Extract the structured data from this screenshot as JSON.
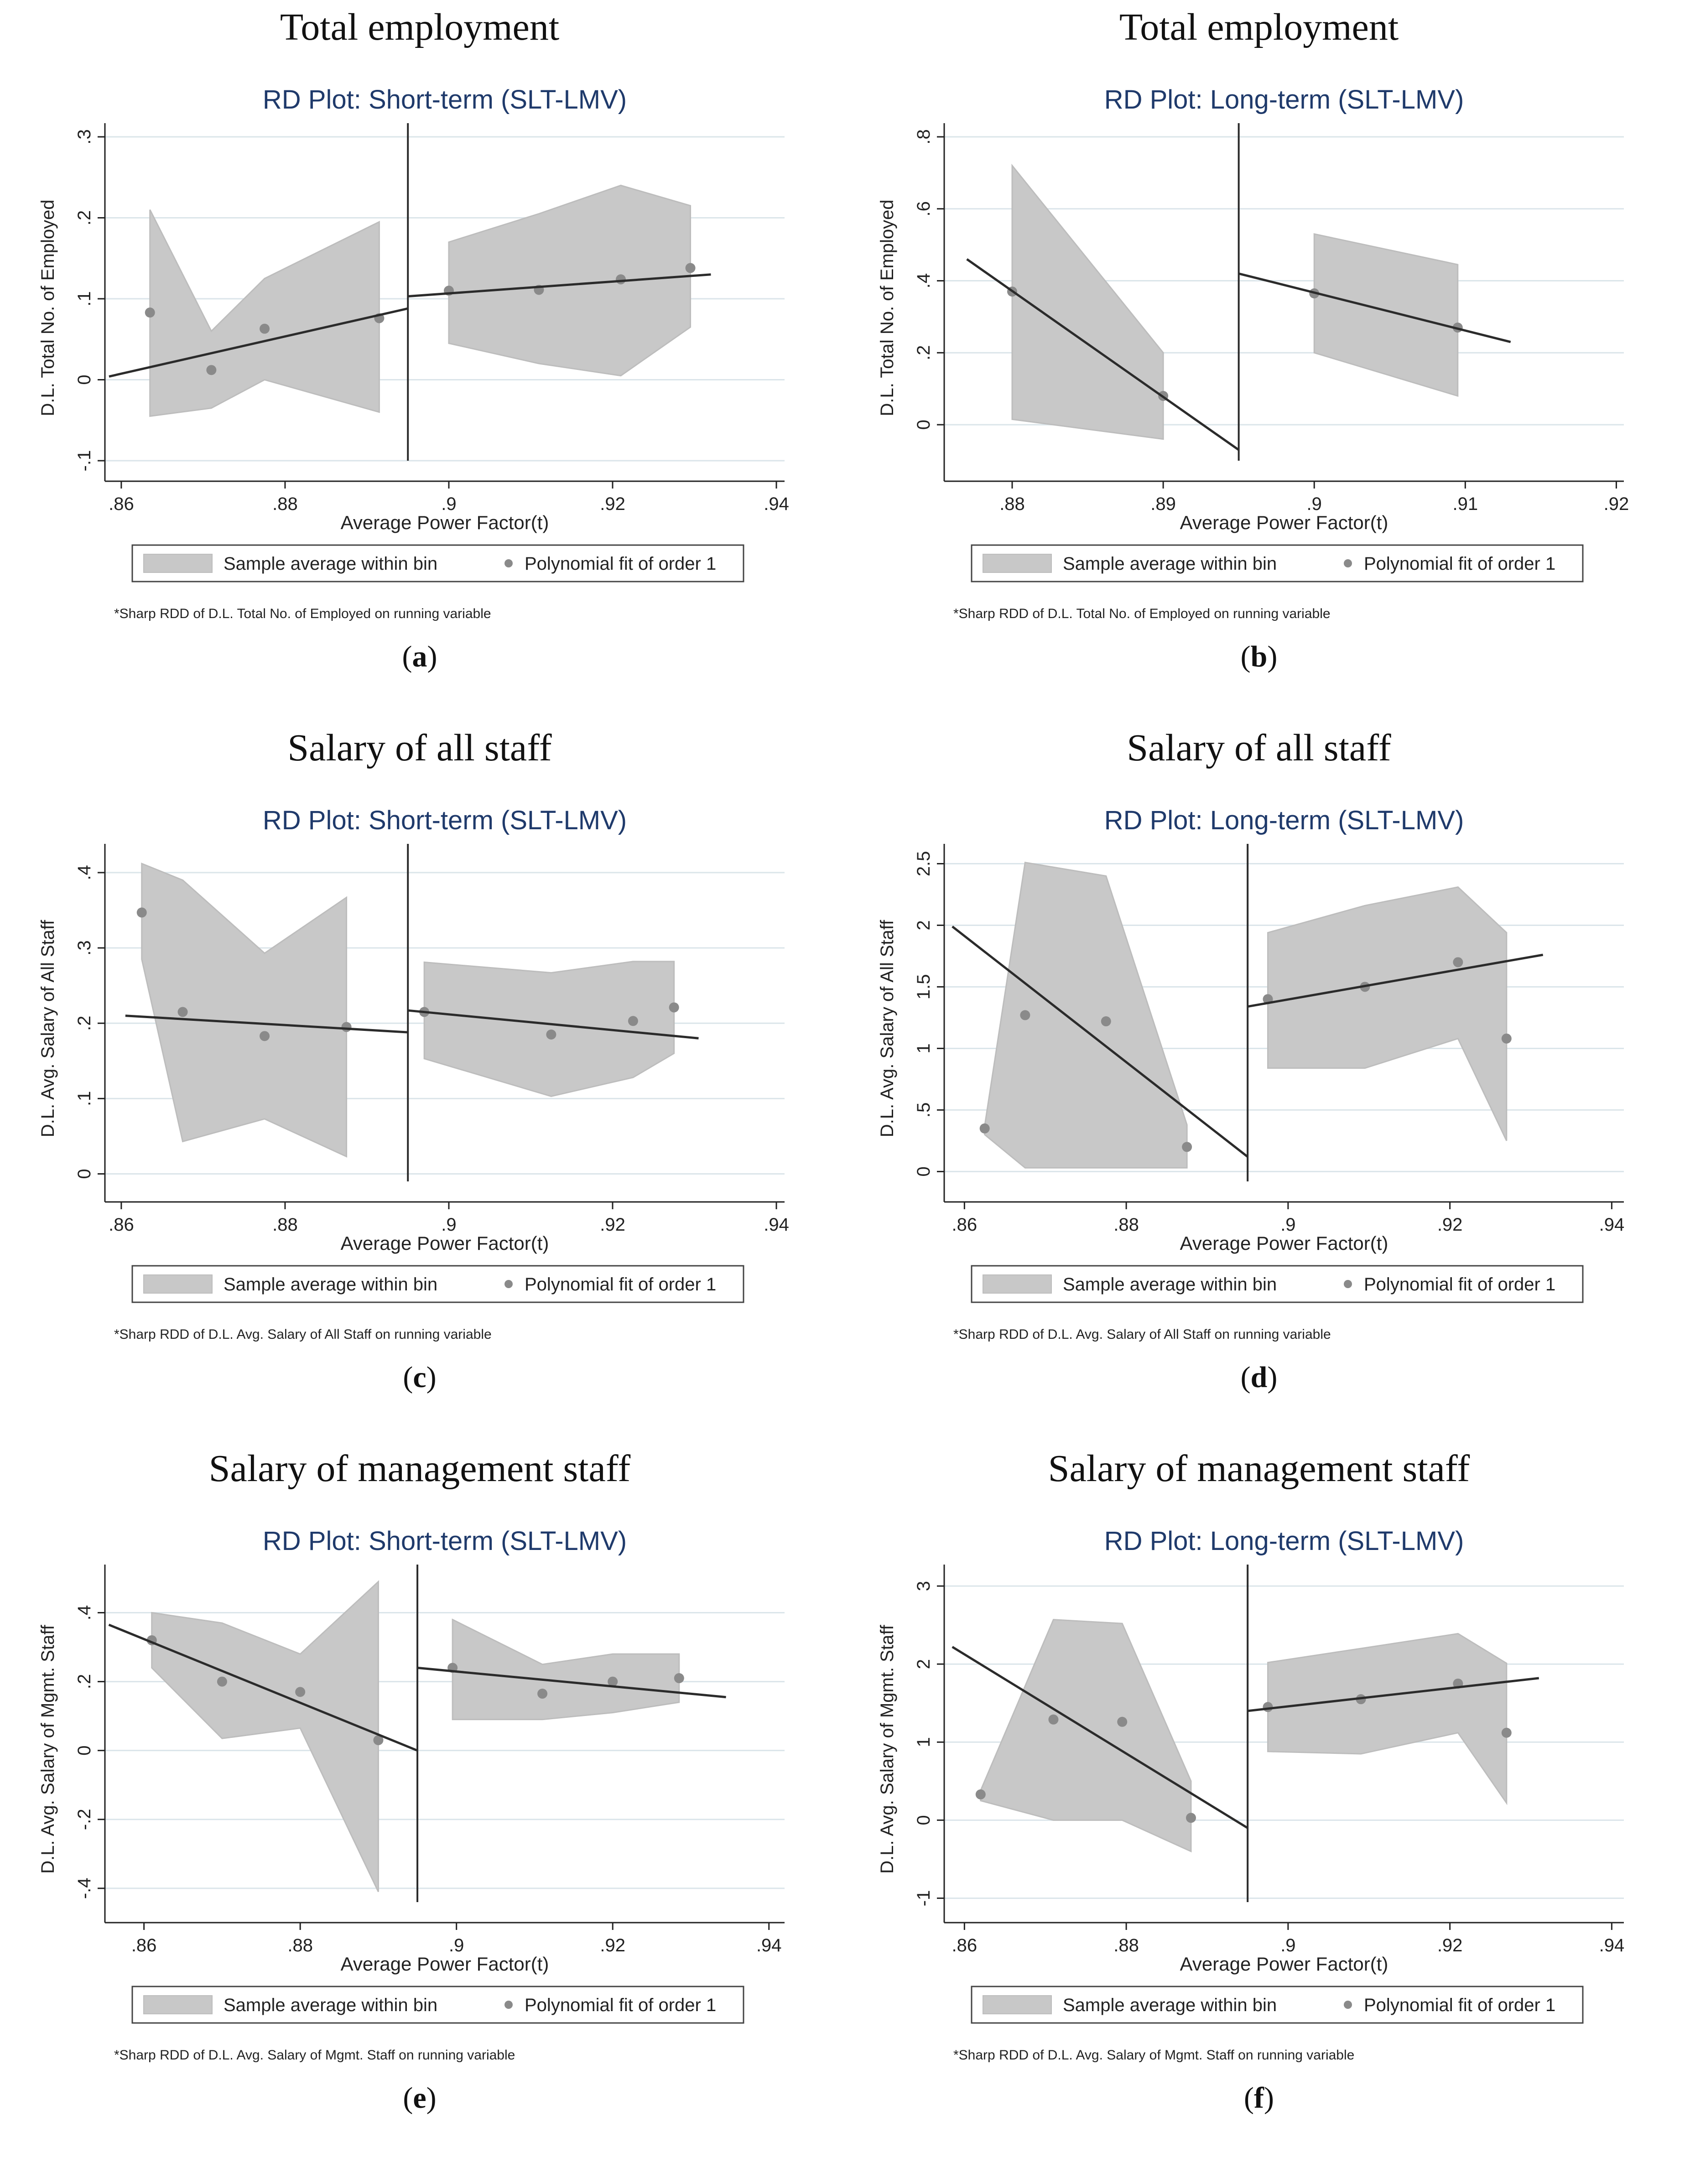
{
  "common": {
    "xlabel": "Average Power Factor(t)",
    "legend_bin": "Sample average within bin",
    "legend_fit": "Polynomial fit of order 1",
    "colors": {
      "band": "#c8c8c8",
      "band_edge": "#bdbdbd",
      "line": "#2b2b2b",
      "dot": "#8a8a8a",
      "title": "#1f3a6b",
      "grid": "#dbe5ea",
      "axis": "#222222"
    }
  },
  "panels": [
    {
      "section_title": "Total employment",
      "caption": "a",
      "chart_data": {
        "type": "line",
        "title": "RD Plot: Short-term (SLT-LMV)",
        "xlabel": "Average Power Factor(t)",
        "ylabel": "D.L. Total No. of Employed",
        "note": "*Sharp RDD of D.L. Total No. of Employed on running variable",
        "xlim": [
          0.858,
          0.941
        ],
        "ylim": [
          -0.1,
          0.3
        ],
        "xticks": [
          0.86,
          0.88,
          0.9,
          0.92,
          0.94
        ],
        "xtick_labels": [
          ".86",
          ".88",
          ".9",
          ".92",
          ".94"
        ],
        "yticks": [
          -0.1,
          0,
          0.1,
          0.2,
          0.3
        ],
        "ytick_labels": [
          "-.1",
          "0",
          ".1",
          ".2",
          ".3"
        ],
        "cutoff": 0.895,
        "band_left": {
          "x": [
            0.8635,
            0.871,
            0.8775,
            0.8915
          ],
          "upper": [
            0.21,
            0.06,
            0.125,
            0.195
          ],
          "lower": [
            -0.045,
            -0.035,
            0.0,
            -0.04
          ]
        },
        "band_right": {
          "x": [
            0.9,
            0.911,
            0.921,
            0.9295
          ],
          "upper": [
            0.17,
            0.205,
            0.24,
            0.215
          ],
          "lower": [
            0.045,
            0.02,
            0.005,
            0.065
          ]
        },
        "points": {
          "x": [
            0.8635,
            0.871,
            0.8775,
            0.8915,
            0.9,
            0.911,
            0.921,
            0.9295
          ],
          "y": [
            0.083,
            0.012,
            0.063,
            0.076,
            0.11,
            0.111,
            0.124,
            0.138
          ]
        },
        "fit_left": {
          "x": [
            0.8585,
            0.895
          ],
          "y": [
            0.004,
            0.088
          ]
        },
        "fit_right": {
          "x": [
            0.895,
            0.932
          ],
          "y": [
            0.103,
            0.13
          ]
        }
      }
    },
    {
      "section_title": "Total employment",
      "caption": "b",
      "chart_data": {
        "type": "line",
        "title": "RD Plot: Long-term (SLT-LMV)",
        "xlabel": "Average Power Factor(t)",
        "ylabel": "D.L. Total No. of Employed",
        "note": "*Sharp RDD of D.L. Total No. of Employed on running variable",
        "xlim": [
          0.8755,
          0.9205
        ],
        "ylim": [
          -0.1,
          0.8
        ],
        "xticks": [
          0.88,
          0.89,
          0.9,
          0.91,
          0.92
        ],
        "xtick_labels": [
          ".88",
          ".89",
          ".9",
          ".91",
          ".92"
        ],
        "yticks": [
          0,
          0.2,
          0.4,
          0.6,
          0.8
        ],
        "ytick_labels": [
          "0",
          ".2",
          ".4",
          ".6",
          ".8"
        ],
        "cutoff": 0.895,
        "band_left": {
          "x": [
            0.88,
            0.89
          ],
          "upper": [
            0.72,
            0.2
          ],
          "lower": [
            0.015,
            -0.04
          ]
        },
        "band_right": {
          "x": [
            0.9,
            0.9095
          ],
          "upper": [
            0.53,
            0.445
          ],
          "lower": [
            0.2,
            0.08
          ]
        },
        "points": {
          "x": [
            0.88,
            0.89,
            0.9,
            0.9095
          ],
          "y": [
            0.37,
            0.08,
            0.365,
            0.27
          ]
        },
        "fit_left": {
          "x": [
            0.877,
            0.895
          ],
          "y": [
            0.46,
            -0.07
          ]
        },
        "fit_right": {
          "x": [
            0.895,
            0.913
          ],
          "y": [
            0.42,
            0.23
          ]
        }
      }
    },
    {
      "section_title": "Salary of all staff",
      "caption": "c",
      "chart_data": {
        "type": "line",
        "title": "RD Plot: Short-term (SLT-LMV)",
        "xlabel": "Average Power Factor(t)",
        "ylabel": "D.L. Avg. Salary of All Staff",
        "note": "*Sharp RDD of D.L. Avg. Salary of All Staff on running variable",
        "xlim": [
          0.858,
          0.941
        ],
        "ylim": [
          -0.01,
          0.42
        ],
        "xticks": [
          0.86,
          0.88,
          0.9,
          0.92,
          0.94
        ],
        "xtick_labels": [
          ".86",
          ".88",
          ".9",
          ".92",
          ".94"
        ],
        "yticks": [
          0,
          0.1,
          0.2,
          0.3,
          0.4
        ],
        "ytick_labels": [
          "0",
          ".1",
          ".2",
          ".3",
          ".4"
        ],
        "cutoff": 0.895,
        "band_left": {
          "x": [
            0.8625,
            0.8675,
            0.8775,
            0.8875
          ],
          "upper": [
            0.412,
            0.39,
            0.293,
            0.367
          ],
          "lower": [
            0.285,
            0.043,
            0.073,
            0.023
          ]
        },
        "band_right": {
          "x": [
            0.897,
            0.9125,
            0.9225,
            0.9275
          ],
          "upper": [
            0.281,
            0.267,
            0.282,
            0.282
          ],
          "lower": [
            0.153,
            0.103,
            0.128,
            0.16
          ]
        },
        "points": {
          "x": [
            0.8625,
            0.8675,
            0.8775,
            0.8875,
            0.897,
            0.9125,
            0.9225,
            0.9275
          ],
          "y": [
            0.347,
            0.215,
            0.183,
            0.195,
            0.215,
            0.185,
            0.203,
            0.221
          ]
        },
        "fit_left": {
          "x": [
            0.8605,
            0.895
          ],
          "y": [
            0.21,
            0.188
          ]
        },
        "fit_right": {
          "x": [
            0.895,
            0.9305
          ],
          "y": [
            0.217,
            0.18
          ]
        }
      }
    },
    {
      "section_title": "Salary of all staff",
      "caption": "d",
      "chart_data": {
        "type": "line",
        "title": "RD Plot: Long-term (SLT-LMV)",
        "xlabel": "Average Power Factor(t)",
        "ylabel": "D.L. Avg. Salary of All Staff",
        "note": "*Sharp RDD of D.L. Avg. Salary of All Staff on running variable",
        "xlim": [
          0.8575,
          0.9415
        ],
        "ylim": [
          -0.08,
          2.55
        ],
        "xticks": [
          0.86,
          0.88,
          0.9,
          0.92,
          0.94
        ],
        "xtick_labels": [
          ".86",
          ".88",
          ".9",
          ".92",
          ".94"
        ],
        "yticks": [
          0,
          0.5,
          1,
          1.5,
          2,
          2.5
        ],
        "ytick_labels": [
          "0",
          ".5",
          "1",
          "1.5",
          "2",
          "2.5"
        ],
        "cutoff": 0.895,
        "band_left": {
          "x": [
            0.8625,
            0.8675,
            0.8775,
            0.8875
          ],
          "upper": [
            0.37,
            2.51,
            2.4,
            0.38
          ],
          "lower": [
            0.3,
            0.03,
            0.03,
            0.03
          ]
        },
        "band_right": {
          "x": [
            0.8975,
            0.9095,
            0.921,
            0.927
          ],
          "upper": [
            1.94,
            2.16,
            2.31,
            1.94
          ],
          "lower": [
            0.84,
            0.84,
            1.08,
            0.25
          ]
        },
        "points": {
          "x": [
            0.8625,
            0.8675,
            0.8775,
            0.8875,
            0.8975,
            0.9095,
            0.921,
            0.927
          ],
          "y": [
            0.35,
            1.27,
            1.22,
            0.2,
            1.4,
            1.5,
            1.7,
            1.08
          ]
        },
        "fit_left": {
          "x": [
            0.8585,
            0.895
          ],
          "y": [
            1.99,
            0.12
          ]
        },
        "fit_right": {
          "x": [
            0.895,
            0.9315
          ],
          "y": [
            1.34,
            1.76
          ]
        }
      }
    },
    {
      "section_title": "Salary of management staff",
      "caption": "e",
      "chart_data": {
        "type": "line",
        "title": "RD Plot: Short-term (SLT-LMV)",
        "xlabel": "Average Power Factor(t)",
        "ylabel": "D.L. Avg. Salary of Mgmt. Staff",
        "note": "*Sharp RDD of D.L. Avg. Salary of Mgmt. Staff on running variable",
        "xlim": [
          0.855,
          0.942
        ],
        "ylim": [
          -0.44,
          0.5
        ],
        "xticks": [
          0.86,
          0.88,
          0.9,
          0.92,
          0.94
        ],
        "xtick_labels": [
          ".86",
          ".88",
          ".9",
          ".92",
          ".94"
        ],
        "yticks": [
          -0.4,
          -0.2,
          0,
          0.2,
          0.4
        ],
        "ytick_labels": [
          "-.4",
          "-.2",
          "0",
          ".2",
          ".4"
        ],
        "cutoff": 0.895,
        "band_left": {
          "x": [
            0.861,
            0.87,
            0.88,
            0.89
          ],
          "upper": [
            0.4,
            0.37,
            0.28,
            0.49
          ],
          "lower": [
            0.24,
            0.035,
            0.065,
            -0.41
          ]
        },
        "band_right": {
          "x": [
            0.8995,
            0.911,
            0.92,
            0.9285
          ],
          "upper": [
            0.38,
            0.25,
            0.28,
            0.28
          ],
          "lower": [
            0.09,
            0.09,
            0.11,
            0.14
          ]
        },
        "points": {
          "x": [
            0.861,
            0.87,
            0.88,
            0.89,
            0.8995,
            0.911,
            0.92,
            0.9285
          ],
          "y": [
            0.32,
            0.2,
            0.17,
            0.03,
            0.24,
            0.165,
            0.2,
            0.21
          ]
        },
        "fit_left": {
          "x": [
            0.8555,
            0.895
          ],
          "y": [
            0.365,
            0.0
          ]
        },
        "fit_right": {
          "x": [
            0.895,
            0.9345
          ],
          "y": [
            0.24,
            0.155
          ]
        }
      }
    },
    {
      "section_title": "Salary of management staff",
      "caption": "f",
      "chart_data": {
        "type": "line",
        "title": "RD Plot: Long-term (SLT-LMV)",
        "xlabel": "Average Power Factor(t)",
        "ylabel": "D.L. Avg. Salary of Mgmt. Staff",
        "note": "*Sharp RDD of D.L. Avg. Salary of Mgmt. Staff on running variable",
        "xlim": [
          0.8575,
          0.9415
        ],
        "ylim": [
          -1.05,
          3.1
        ],
        "xticks": [
          0.86,
          0.88,
          0.9,
          0.92,
          0.94
        ],
        "xtick_labels": [
          ".86",
          ".88",
          ".9",
          ".92",
          ".94"
        ],
        "yticks": [
          -1,
          0,
          1,
          2,
          3
        ],
        "ytick_labels": [
          "-1",
          "0",
          "1",
          "2",
          "3"
        ],
        "cutoff": 0.895,
        "band_left": {
          "x": [
            0.862,
            0.871,
            0.8795,
            0.888
          ],
          "upper": [
            0.38,
            2.57,
            2.52,
            0.5
          ],
          "lower": [
            0.25,
            0.0,
            0.0,
            -0.4
          ]
        },
        "band_right": {
          "x": [
            0.8975,
            0.909,
            0.921,
            0.927
          ],
          "upper": [
            2.02,
            2.2,
            2.39,
            2.01
          ],
          "lower": [
            0.88,
            0.85,
            1.12,
            0.22
          ]
        },
        "points": {
          "x": [
            0.862,
            0.871,
            0.8795,
            0.888,
            0.8975,
            0.909,
            0.921,
            0.927
          ],
          "y": [
            0.33,
            1.29,
            1.26,
            0.03,
            1.45,
            1.55,
            1.75,
            1.12
          ]
        },
        "fit_left": {
          "x": [
            0.8585,
            0.895
          ],
          "y": [
            2.22,
            -0.1
          ]
        },
        "fit_right": {
          "x": [
            0.895,
            0.931
          ],
          "y": [
            1.4,
            1.82
          ]
        }
      }
    }
  ]
}
